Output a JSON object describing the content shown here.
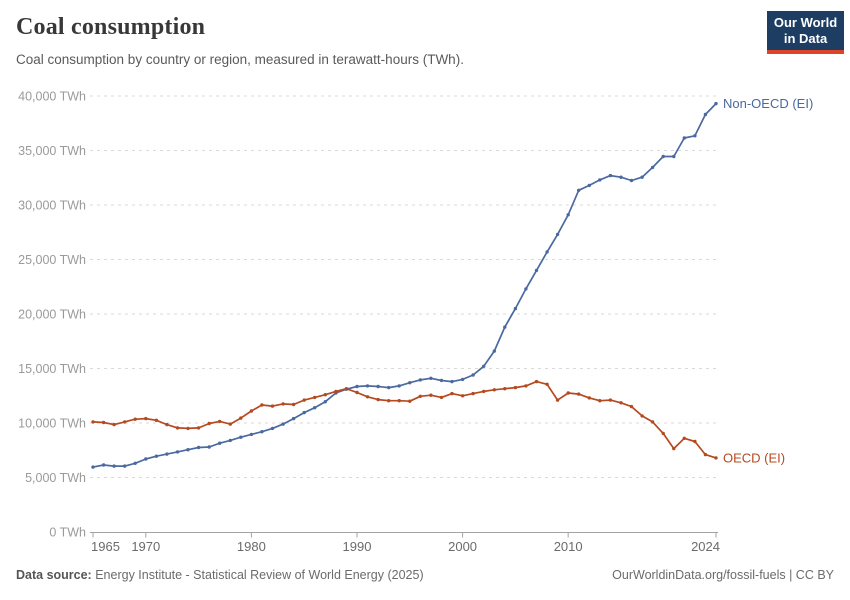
{
  "header": {
    "title": "Coal consumption",
    "subtitle": "Coal consumption by country or region, measured in terawatt-hours (TWh).",
    "logo_line1": "Our World",
    "logo_line2": "in Data"
  },
  "footer": {
    "source_label": "Data source:",
    "source_text": "Energy Institute - Statistical Review of World Energy (2025)",
    "link_text": "OurWorldinData.org/fossil-fuels | CC BY"
  },
  "colors": {
    "non_oecd_blue": "#4A69A0",
    "oecd_red": "#B5491F",
    "gridline": "#d9d9d9",
    "axis_line": "#a3a3a3",
    "y_tick_text": "#9a9a9a",
    "x_tick_text": "#6b6b6b",
    "title_text": "#383838",
    "logo_bg": "#1d3d63",
    "logo_bar": "#dd4327"
  },
  "chart_data": {
    "type": "line",
    "title": "Coal consumption",
    "unit": "TWh",
    "grid": "horizontal-dashed",
    "legend_position": "line-end-labels",
    "ylim": [
      0,
      40000
    ],
    "yticks": [
      0,
      5000,
      10000,
      15000,
      20000,
      25000,
      30000,
      35000,
      40000
    ],
    "xticks": [
      1965,
      1970,
      1980,
      1990,
      2000,
      2010,
      2024
    ],
    "x": [
      1965,
      1966,
      1967,
      1968,
      1969,
      1970,
      1971,
      1972,
      1973,
      1974,
      1975,
      1976,
      1977,
      1978,
      1979,
      1980,
      1981,
      1982,
      1983,
      1984,
      1985,
      1986,
      1987,
      1988,
      1989,
      1990,
      1991,
      1992,
      1993,
      1994,
      1995,
      1996,
      1997,
      1998,
      1999,
      2000,
      2001,
      2002,
      2003,
      2004,
      2005,
      2006,
      2007,
      2008,
      2009,
      2010,
      2011,
      2012,
      2013,
      2014,
      2015,
      2016,
      2017,
      2018,
      2019,
      2020,
      2021,
      2022,
      2023,
      2024
    ],
    "series": [
      {
        "name": "Non-OECD (EI)",
        "color": "#4A69A0",
        "values": [
          5950,
          6150,
          6050,
          6050,
          6300,
          6700,
          6950,
          7150,
          7350,
          7550,
          7750,
          7800,
          8150,
          8400,
          8700,
          8950,
          9200,
          9500,
          9900,
          10400,
          10950,
          11400,
          11950,
          12750,
          13100,
          13350,
          13400,
          13350,
          13250,
          13400,
          13700,
          13950,
          14100,
          13900,
          13800,
          14000,
          14400,
          15200,
          16600,
          18800,
          20500,
          22300,
          24000,
          25700,
          27300,
          29100,
          31350,
          31800,
          32300,
          32700,
          32550,
          32250,
          32550,
          33450,
          34450,
          34450,
          36150,
          36350,
          38300,
          39300
        ]
      },
      {
        "name": "OECD (EI)",
        "color": "#B5491F",
        "values": [
          10100,
          10050,
          9850,
          10100,
          10350,
          10400,
          10250,
          9850,
          9550,
          9500,
          9550,
          9950,
          10150,
          9900,
          10450,
          11100,
          11650,
          11550,
          11750,
          11700,
          12100,
          12350,
          12600,
          12900,
          13150,
          12800,
          12400,
          12150,
          12050,
          12050,
          12000,
          12450,
          12550,
          12350,
          12700,
          12500,
          12700,
          12900,
          13050,
          13150,
          13250,
          13400,
          13800,
          13550,
          12100,
          12750,
          12650,
          12300,
          12050,
          12100,
          11850,
          11500,
          10650,
          10100,
          9050,
          7650,
          8600,
          8300,
          7100,
          6800
        ]
      }
    ]
  }
}
